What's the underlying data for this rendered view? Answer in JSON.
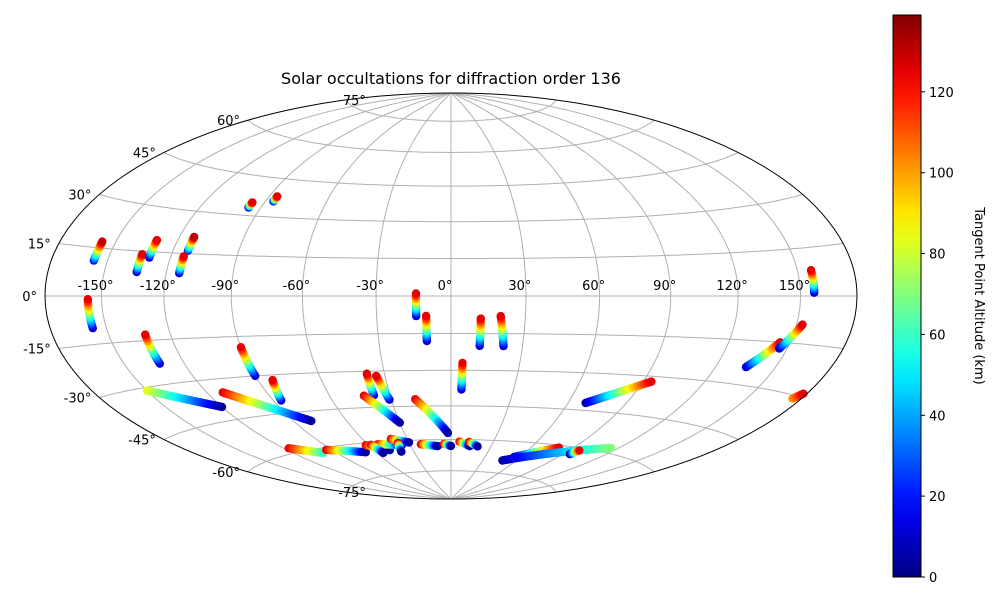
{
  "chart_data": {
    "type": "scatter",
    "projection": "hammer",
    "title": "Solar occultations for diffraction order 136",
    "x_tick_labels": [
      "-150°",
      "-120°",
      "-90°",
      "-60°",
      "-30°",
      "0°",
      "30°",
      "60°",
      "90°",
      "120°",
      "150°"
    ],
    "x_tick_values": [
      -150,
      -120,
      -90,
      -60,
      -30,
      0,
      30,
      60,
      90,
      120,
      150
    ],
    "y_tick_labels": [
      "-75°",
      "-60°",
      "-45°",
      "-30°",
      "-15°",
      "0°",
      "15°",
      "30°",
      "45°",
      "60°",
      "75°"
    ],
    "y_tick_values": [
      -75,
      -60,
      -45,
      -30,
      -15,
      0,
      15,
      30,
      45,
      60,
      75
    ],
    "grid": true,
    "colorbar": {
      "label": "Tangent Point Altitude (km)",
      "min": 0,
      "max": 139,
      "ticks": [
        0,
        20,
        40,
        60,
        80,
        100,
        120
      ],
      "colormap": "jet"
    },
    "tracks": [
      {
        "lon": -157,
        "lat_lo": 11,
        "lat_hi": 17,
        "alt_lo": 20,
        "alt_hi": 130
      },
      {
        "lon": -134,
        "lat_lo": 8,
        "lat_hi": 14,
        "alt_lo": 10,
        "alt_hi": 125
      },
      {
        "lon": -130,
        "lat_lo": 13,
        "lat_hi": 19,
        "alt_lo": 10,
        "alt_hi": 125
      },
      {
        "lon": -113,
        "lat_lo": 16,
        "lat_hi": 21,
        "alt_lo": 20,
        "alt_hi": 130
      },
      {
        "lon": -114,
        "lat_lo": 8,
        "lat_hi": 14,
        "alt_lo": 10,
        "alt_hi": 125
      },
      {
        "lon": -96,
        "lat_lo": 33,
        "lat_hi": 35,
        "alt_lo": 10,
        "alt_hi": 125
      },
      {
        "lon": -86,
        "lat_lo": 36,
        "lat_hi": 38,
        "alt_lo": 10,
        "alt_hi": 125
      },
      {
        "lon": -157,
        "lat_lo": -10,
        "lat_hi": -1,
        "alt_lo": 10,
        "alt_hi": 125
      },
      {
        "lon": -132,
        "lat_lo": -23,
        "lat_hi": -13,
        "alt_lo": 10,
        "alt_hi": 125
      },
      {
        "lon": -90,
        "lat_lo": -30,
        "lat_hi": -19,
        "alt_lo": 10,
        "alt_hi": 125
      },
      {
        "lon": -14,
        "lat_lo": -8,
        "lat_hi": 1,
        "alt_lo": 10,
        "alt_hi": 125
      },
      {
        "lon": -10,
        "lat_lo": -18,
        "lat_hi": -8,
        "alt_lo": 10,
        "alt_hi": 125
      },
      {
        "lon": 12,
        "lat_lo": -20,
        "lat_hi": -9,
        "alt_lo": 10,
        "alt_hi": 125
      },
      {
        "lon": 157,
        "lat_lo": 1,
        "lat_hi": 8,
        "alt_lo": 10,
        "alt_hi": 125
      },
      {
        "lon": 5,
        "lat_lo": -38,
        "lat_hi": -27,
        "alt_lo": 10,
        "alt_hi": 125
      },
      {
        "lon": -38,
        "lat_lo": -40,
        "lat_hi": -31,
        "alt_lo": 10,
        "alt_hi": 125
      }
    ],
    "segments": [
      {
        "lon1": -86,
        "lat1": -40,
        "lon2": -83,
        "lat2": -32,
        "alt1": 10,
        "alt2": 125
      },
      {
        "lon1": -31,
        "lat1": -42,
        "lon2": -34,
        "lat2": -32,
        "alt1": 10,
        "alt2": 125
      },
      {
        "lon1": 22,
        "lat1": -20,
        "lon2": 20,
        "lat2": -8,
        "alt1": 10,
        "alt2": 125
      },
      {
        "lon1": 135,
        "lat1": -24,
        "lon2": 145,
        "lat2": -15,
        "alt1": 10,
        "alt2": 125
      },
      {
        "lon1": 146,
        "lat1": -17,
        "lon2": 153,
        "lat2": -9,
        "alt1": 10,
        "alt2": 125
      },
      {
        "lon1": -150,
        "lat1": -31,
        "lon2": -120,
        "lat2": -40,
        "alt1": 85,
        "alt2": 5
      },
      {
        "lon1": -112,
        "lat1": -35,
        "lon2": -80,
        "lat2": -49,
        "alt1": 125,
        "alt2": 5
      },
      {
        "lon1": -43,
        "lat1": -40,
        "lon2": -30,
        "lat2": -52,
        "alt1": 125,
        "alt2": 5
      },
      {
        "lon1": -18,
        "lat1": -42,
        "lon2": -2,
        "lat2": -57,
        "alt1": 125,
        "alt2": 5
      },
      {
        "lon1": -117,
        "lat1": -58,
        "lon2": -100,
        "lat2": -62,
        "alt1": 125,
        "alt2": 60
      },
      {
        "lon1": -94,
        "lat1": -61,
        "lon2": -68,
        "lat2": -64,
        "alt1": 125,
        "alt2": 5
      },
      {
        "lon1": -62,
        "lat1": -61,
        "lon2": -48,
        "lat2": -64,
        "alt1": 125,
        "alt2": 5
      },
      {
        "lon1": -53,
        "lat1": -61,
        "lon2": -36,
        "lat2": -62,
        "alt1": 125,
        "alt2": 5
      },
      {
        "lon1": -41,
        "lat1": -59,
        "lon2": -30,
        "lat2": -61,
        "alt1": 125,
        "alt2": 5
      },
      {
        "lon1": -58,
        "lat1": -61,
        "lon2": -55,
        "lat2": -65,
        "alt1": 125,
        "alt2": 5
      },
      {
        "lon1": -38,
        "lat1": -61,
        "lon2": -40,
        "lat2": -65,
        "alt1": 125,
        "alt2": 5
      },
      {
        "lon1": -22,
        "lat1": -62,
        "lon2": -10,
        "lat2": -63,
        "alt1": 125,
        "alt2": 5
      },
      {
        "lon1": -5,
        "lat1": -62,
        "lon2": 0,
        "lat2": -63,
        "alt1": 125,
        "alt2": 5
      },
      {
        "lon1": 6,
        "lat1": -61,
        "lon2": 14,
        "lat2": -63,
        "alt1": 125,
        "alt2": 5
      },
      {
        "lon1": 13,
        "lat1": -61,
        "lon2": 20,
        "lat2": -63,
        "alt1": 125,
        "alt2": 5
      },
      {
        "lon1": 55,
        "lat1": -67,
        "lon2": 80,
        "lat2": -61,
        "alt1": 5,
        "alt2": 125
      },
      {
        "lon1": 48,
        "lat1": -69,
        "lon2": 115,
        "lat2": -58,
        "alt1": 5,
        "alt2": 70
      },
      {
        "lon1": 69,
        "lat1": -42,
        "lon2": 94,
        "lat2": -32,
        "alt1": 5,
        "alt2": 125
      },
      {
        "lon1": 175,
        "lat1": -31,
        "lon2": 178,
        "lat2": -29,
        "alt1": 100,
        "alt2": 125
      },
      {
        "lon1": 95,
        "lat1": -63,
        "lon2": 97,
        "lat2": -61,
        "alt1": 5,
        "alt2": 125
      }
    ]
  }
}
